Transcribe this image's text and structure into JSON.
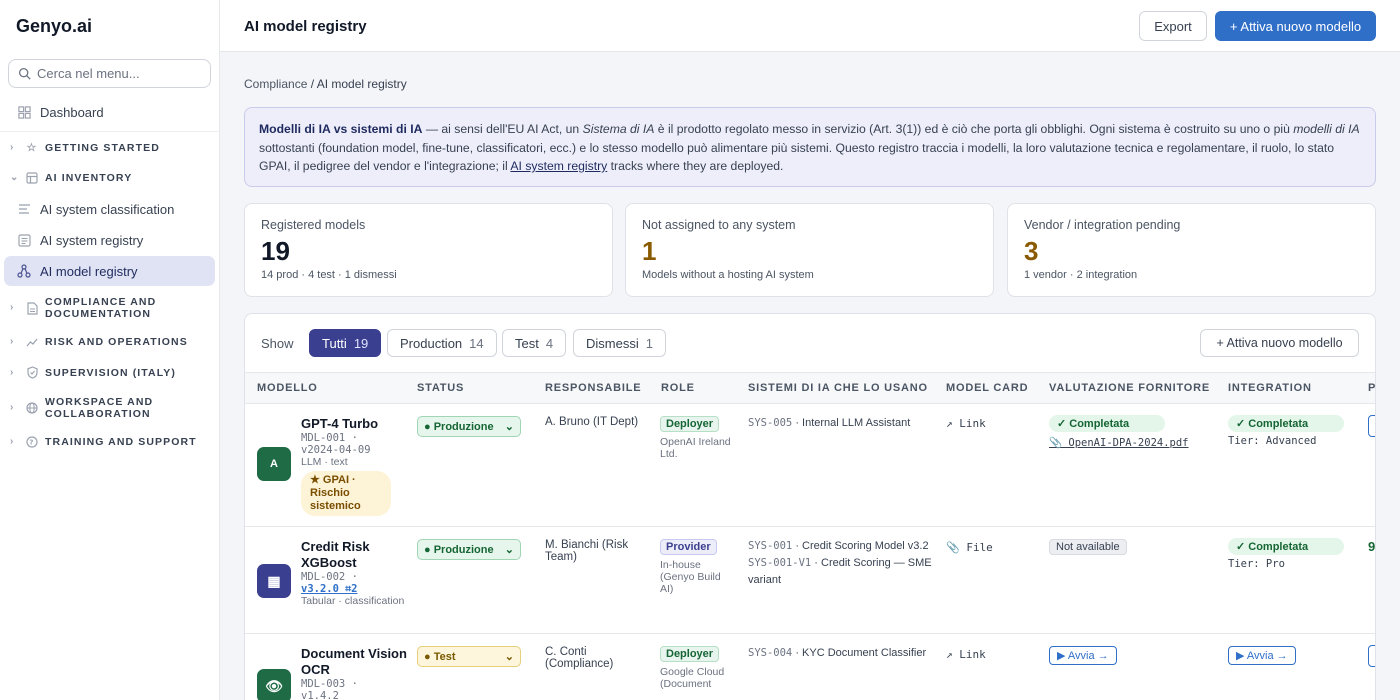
{
  "brand": "Genyo.ai",
  "search": {
    "placeholder": "Cerca nel menu..."
  },
  "sidebar": {
    "dashboard": "Dashboard",
    "groups": {
      "getting_started": "GETTING STARTED",
      "ai_inventory": "AI INVENTORY",
      "compliance_doc": [
        "COMPLIANCE AND",
        "DOCUMENTATION"
      ],
      "risk_ops": "RISK AND OPERATIONS",
      "supervision": "SUPERVISION (ITALY)",
      "workspace": [
        "WORKSPACE AND",
        "COLLABORATION"
      ],
      "training": "TRAINING AND SUPPORT"
    },
    "inventory_items": [
      "AI system classification",
      "AI system registry",
      "AI model registry"
    ]
  },
  "topbar": {
    "title": "AI model registry",
    "export_label": "Export",
    "primary_label": "+ Attiva nuovo modello"
  },
  "breadcrumb": {
    "parent": "Compliance",
    "sep": " / ",
    "current": "AI model registry"
  },
  "info": {
    "bold": "Modelli di IA vs sistemi di IA",
    "t1": " — ai sensi dell'EU AI Act, un ",
    "i1": "Sistema di IA",
    "t2": " è il prodotto regolato messo in servizio (Art. 3(1)) ed è ciò che porta gli obblighi. Ogni sistema è costruito su uno o più ",
    "i2": "modelli di IA",
    "t3": " sottostanti (foundation model, fine-tune, classificatori, ecc.) e lo stesso modello può alimentare più sistemi. Questo registro traccia i modelli, la loro valutazione tecnica e regolamentare, il ruolo, lo stato GPAI, il pedigree del vendor e l'integrazione; il ",
    "link": "AI system registry",
    "t4": " tracks where they are deployed."
  },
  "stats": [
    {
      "label": "Registered models",
      "value": "19",
      "sub": "14 prod · 4 test · 1 dismessi"
    },
    {
      "label": "Not assigned to any system",
      "value": "1",
      "sub": "Models without a hosting AI system"
    },
    {
      "label": "Vendor / integration pending",
      "value": "3",
      "sub": "1 vendor · 2 integration"
    }
  ],
  "filters": {
    "show_label": "Show",
    "chips": [
      {
        "label": "Tutti",
        "count": "19"
      },
      {
        "label": "Production",
        "count": "14"
      },
      {
        "label": "Test",
        "count": "4"
      },
      {
        "label": "Dismessi",
        "count": "1"
      }
    ],
    "add_label": "+ Attiva nuovo modello"
  },
  "table": {
    "headers": [
      "MODELLO",
      "STATUS",
      "RESPONSABILE",
      "ROLE",
      "SISTEMI DI IA CHE LO USANO",
      "MODEL CARD",
      "VALUTAZIONE FORNITORE",
      "INTEGRATION",
      "P"
    ],
    "rows": [
      {
        "name": "GPT-4 Turbo",
        "code": "MDL-001 ·",
        "version": "v2024-04-09",
        "kind": "LLM · text",
        "gpai": "★ GPAI · Rischio sistemico",
        "avatar": "A",
        "status": "● Produzione",
        "owner": "A. Bruno (IT Dept)",
        "role": "Deployer",
        "vendor": "OpenAI Ireland Ltd.",
        "systems": [
          {
            "code": "SYS-005",
            "name": " · Internal LLM Assistant"
          }
        ],
        "model_card": "↗ Link",
        "vendor_eval": "✓ Completata",
        "vendor_doc": "📎 OpenAI-DPA-2024.pdf",
        "integration": "✓ Completata",
        "tier": "Tier: Advanced"
      },
      {
        "name": "Credit Risk XGBoost",
        "code": "MDL-002 ·",
        "version": "v3.2.0 ⌗2",
        "kind": "Tabular · classification",
        "avatar": "▦",
        "status": "● Produzione",
        "owner": "M. Bianchi (Risk Team)",
        "role": "Provider",
        "vendor": "In-house (Genyo Build AI)",
        "systems": [
          {
            "code": "SYS-001",
            "name": " · Credit Scoring Model v3.2"
          },
          {
            "code": "SYS-001-V1",
            "name": " · Credit Scoring — SME variant"
          }
        ],
        "model_card": "📎 File",
        "vendor_eval": "Not available",
        "integration": "✓ Completata",
        "tier": "Tier: Pro",
        "extra": "9"
      },
      {
        "name": "Document Vision OCR",
        "code": "MDL-003 ·",
        "version": "v1.4.2",
        "avatar": "👁",
        "status": "● Test",
        "owner": "C. Conti (Compliance)",
        "role": "Deployer",
        "vendor": "Google Cloud (Document",
        "systems": [
          {
            "code": "SYS-004",
            "name": " · KYC Document Classifier"
          }
        ],
        "model_card": "↗ Link",
        "vendor_eval": "▶ Avvia →",
        "integration": "▶ Avvia →"
      }
    ]
  },
  "colors": {
    "primary": "#2f6fc8",
    "accent": "#3b3f8f",
    "amber": "#8a5a00",
    "success": "#166534"
  }
}
